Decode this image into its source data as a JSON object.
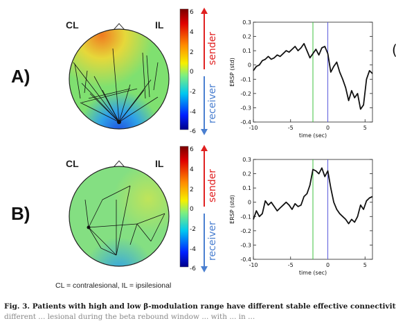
{
  "panels": [
    {
      "label": "A)",
      "left_side": "CL",
      "right_side": "IL",
      "colorbar": {
        "ticks": [
          "6",
          "4",
          "2",
          "0",
          "-2",
          "-4",
          "-6"
        ],
        "sender": "sender",
        "receiver": "receiver"
      }
    },
    {
      "label": "B)",
      "left_side": "CL",
      "right_side": "IL",
      "colorbar": {
        "ticks": [
          "6",
          "4",
          "2",
          "0",
          "-2",
          "-4",
          "-6"
        ],
        "sender": "sender",
        "receiver": "receiver"
      }
    }
  ],
  "footnote": "CL = contralesional, IL = ipsilesional",
  "caption": "Fig. 3. Patients with high and low β-modulation range have different stable effective connectivity",
  "caption_cut": "different ... lesional during the beta rebound window ... with ... in ...",
  "partial_right_char": "(",
  "colors": {
    "sender": "#e02020",
    "receiver": "#4a7fd0",
    "marker_green": "#3cc23c",
    "marker_blue": "#5a5adc"
  },
  "chart_data": [
    {
      "type": "line",
      "xlabel": "time (sec)",
      "ylabel": "ERSP (std)",
      "xlim": [
        -10,
        6
      ],
      "ylim": [
        -0.4,
        0.3
      ],
      "xticks": [
        -10,
        -5,
        0,
        5
      ],
      "yticks": [
        0.3,
        0.2,
        0.1,
        0,
        -0.1,
        -0.2,
        -0.3,
        -0.4
      ],
      "vlines": [
        {
          "x": -2,
          "color": "green"
        },
        {
          "x": 0,
          "color": "blue"
        }
      ],
      "series": [
        {
          "x": [
            -10,
            -9.6,
            -9.2,
            -8.8,
            -8.4,
            -8,
            -7.6,
            -7.2,
            -6.8,
            -6.4,
            -6,
            -5.6,
            -5.2,
            -4.8,
            -4.4,
            -4,
            -3.6,
            -3.2,
            -2.8,
            -2.4,
            -2,
            -1.6,
            -1.2,
            -0.8,
            -0.4,
            0,
            0.4,
            0.8,
            1.2,
            1.6,
            2,
            2.4,
            2.8,
            3.2,
            3.6,
            4,
            4.4,
            4.8,
            5.2,
            5.6,
            6
          ],
          "y": [
            -0.04,
            -0.01,
            0.0,
            0.03,
            0.04,
            0.06,
            0.04,
            0.05,
            0.07,
            0.06,
            0.08,
            0.1,
            0.09,
            0.11,
            0.13,
            0.1,
            0.12,
            0.15,
            0.1,
            0.05,
            0.08,
            0.11,
            0.07,
            0.12,
            0.13,
            0.08,
            -0.05,
            -0.01,
            0.02,
            -0.05,
            -0.1,
            -0.16,
            -0.25,
            -0.18,
            -0.23,
            -0.2,
            -0.31,
            -0.28,
            -0.1,
            -0.04,
            -0.06
          ]
        }
      ]
    },
    {
      "type": "line",
      "xlabel": "time (sec)",
      "ylabel": "ERSP (std)",
      "xlim": [
        -10,
        6
      ],
      "ylim": [
        -0.4,
        0.3
      ],
      "xticks": [
        -10,
        -5,
        0,
        5
      ],
      "yticks": [
        0.3,
        0.2,
        0.1,
        0,
        -0.1,
        -0.2,
        -0.3,
        -0.4
      ],
      "vlines": [
        {
          "x": -2,
          "color": "green"
        },
        {
          "x": 0,
          "color": "blue"
        }
      ],
      "series": [
        {
          "x": [
            -10,
            -9.6,
            -9.2,
            -8.8,
            -8.4,
            -8,
            -7.6,
            -7.2,
            -6.8,
            -6.4,
            -6,
            -5.6,
            -5.2,
            -4.8,
            -4.4,
            -4,
            -3.6,
            -3.2,
            -2.8,
            -2.4,
            -2,
            -1.6,
            -1.2,
            -0.8,
            -0.4,
            0,
            0.4,
            0.8,
            1.2,
            1.6,
            2,
            2.4,
            2.8,
            3.2,
            3.6,
            4,
            4.4,
            4.8,
            5.2,
            5.6,
            6
          ],
          "y": [
            -0.12,
            -0.06,
            -0.1,
            -0.08,
            0.01,
            -0.02,
            0.0,
            -0.03,
            -0.06,
            -0.04,
            -0.02,
            0.0,
            -0.02,
            -0.05,
            -0.01,
            -0.03,
            -0.02,
            0.04,
            0.06,
            0.12,
            0.23,
            0.22,
            0.2,
            0.24,
            0.18,
            0.22,
            0.1,
            0.0,
            -0.05,
            -0.08,
            -0.1,
            -0.12,
            -0.15,
            -0.12,
            -0.14,
            -0.1,
            -0.02,
            -0.05,
            0.01,
            0.03,
            0.04
          ]
        }
      ]
    }
  ]
}
